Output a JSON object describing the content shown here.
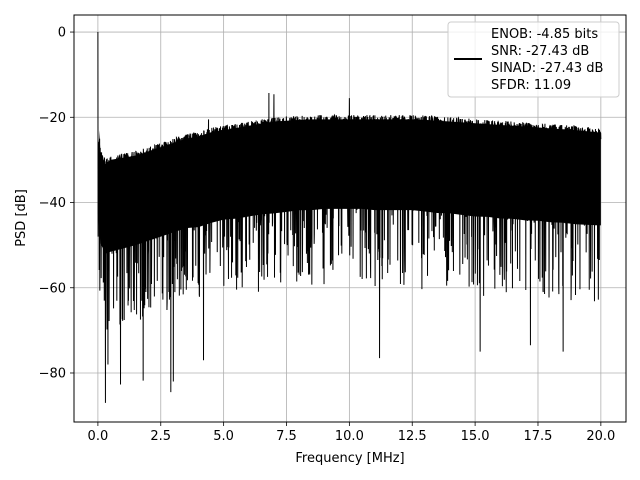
{
  "chart_data": {
    "type": "line",
    "title": "",
    "xlabel": "Frequency [MHz]",
    "ylabel": "PSD [dB]",
    "xlim": [
      -0.95,
      21.0
    ],
    "ylim": [
      -91.5,
      4.0
    ],
    "xticks": [
      0.0,
      2.5,
      5.0,
      7.5,
      10.0,
      12.5,
      15.0,
      17.5,
      20.0
    ],
    "xtick_labels": [
      "0.0",
      "2.5",
      "5.0",
      "7.5",
      "10.0",
      "12.5",
      "15.0",
      "17.5",
      "20.0"
    ],
    "yticks": [
      0,
      -20,
      -40,
      -60,
      -80
    ],
    "ytick_labels": [
      "0",
      "−20",
      "−40",
      "−60",
      "−80"
    ],
    "grid": true,
    "legend_position": "top-right",
    "line_color": "#000000",
    "series": [
      {
        "legend_lines": [
          "ENOB: -4.85 bits",
          "SNR: -27.43 dB",
          "SINAD: -27.43 dB",
          "SFDR: 11.09"
        ],
        "envelope": {
          "x": [
            0.0,
            0.05,
            0.1,
            0.3,
            0.5,
            1.0,
            1.5,
            2.0,
            2.5,
            3.0,
            3.5,
            4.0,
            4.5,
            5.0,
            5.5,
            6.0,
            6.5,
            7.0,
            7.5,
            8.0,
            8.5,
            9.0,
            9.5,
            10.0,
            10.5,
            11.0,
            11.5,
            12.0,
            12.5,
            13.0,
            13.5,
            14.0,
            14.5,
            15.0,
            15.5,
            16.0,
            16.5,
            17.0,
            17.5,
            18.0,
            18.5,
            19.0,
            19.5,
            20.0
          ],
          "upper": [
            -40,
            -22,
            -27,
            -30,
            -29,
            -28.5,
            -28,
            -27,
            -26,
            -25,
            -24,
            -23.5,
            -22.5,
            -22,
            -21.5,
            -21,
            -20.5,
            -20,
            -19.8,
            -19.6,
            -19.5,
            -19.5,
            -19.5,
            -19.5,
            -19.5,
            -19.5,
            -19.5,
            -19.5,
            -19.5,
            -19.6,
            -19.8,
            -20,
            -20.2,
            -20.4,
            -20.6,
            -20.8,
            -21,
            -21.2,
            -21.4,
            -21.6,
            -21.8,
            -22,
            -22.3,
            -22.6
          ],
          "lower": [
            -45,
            -65,
            -68,
            -70,
            -70,
            -69,
            -68,
            -67,
            -66,
            -65,
            -64,
            -64,
            -63,
            -62,
            -62,
            -61.5,
            -61,
            -61,
            -60.5,
            -60,
            -60,
            -59.5,
            -59.5,
            -59.5,
            -59.5,
            -60,
            -60,
            -60,
            -60,
            -60.5,
            -61,
            -61,
            -61.5,
            -62,
            -62,
            -62.5,
            -62.5,
            -63,
            -63,
            -63.5,
            -63.5,
            -64,
            -64,
            -64
          ]
        },
        "peaks": [
          {
            "x": 0.0,
            "y": 0.0
          },
          {
            "x": 6.8,
            "y": -14.3
          },
          {
            "x": 7.0,
            "y": -14.6
          },
          {
            "x": 10.0,
            "y": -15.5
          },
          {
            "x": 4.4,
            "y": -20.5
          },
          {
            "x": 0.3,
            "y": -87.0
          },
          {
            "x": 0.4,
            "y": -78.0
          },
          {
            "x": 0.9,
            "y": -82.7
          },
          {
            "x": 1.8,
            "y": -81.8
          },
          {
            "x": 2.9,
            "y": -84.5
          },
          {
            "x": 3.0,
            "y": -82.0
          },
          {
            "x": 4.2,
            "y": -77.0
          },
          {
            "x": 11.2,
            "y": -76.5
          },
          {
            "x": 15.2,
            "y": -75.0
          },
          {
            "x": 17.2,
            "y": -73.5
          },
          {
            "x": 18.5,
            "y": -75.0
          }
        ]
      }
    ]
  }
}
